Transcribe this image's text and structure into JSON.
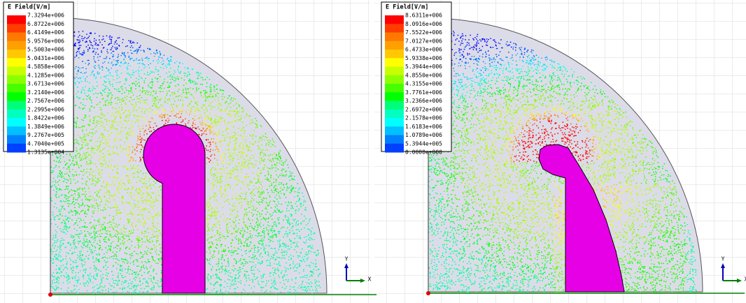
{
  "panels": [
    {
      "legend": {
        "title": "E Field[V/m]",
        "labels": [
          "7.3294e+006",
          "6.8722e+006",
          "6.4149e+006",
          "5.9576e+006",
          "5.5003e+006",
          "5.0431e+006",
          "4.5858e+006",
          "4.1285e+006",
          "3.6713e+006",
          "3.2140e+006",
          "2.7567e+006",
          "2.2995e+006",
          "1.8422e+006",
          "1.3849e+006",
          "9.2767e+005",
          "4.7040e+005",
          "1.3135e+004"
        ]
      },
      "axes": {
        "y": "Y",
        "x": "X"
      }
    },
    {
      "legend": {
        "title": "E Field[V/m]",
        "labels": [
          "8.6311e+006",
          "8.0916e+006",
          "7.5522e+006",
          "7.0127e+006",
          "6.4733e+006",
          "5.9338e+006",
          "5.3944e+006",
          "4.8550e+006",
          "4.3155e+006",
          "3.7761e+006",
          "3.2366e+006",
          "2.6972e+006",
          "2.1578e+006",
          "1.6183e+006",
          "1.0789e+006",
          "5.3944e+005",
          "0.0000e+000"
        ]
      },
      "axes": {
        "y": "Y",
        "x": "X"
      }
    }
  ]
}
